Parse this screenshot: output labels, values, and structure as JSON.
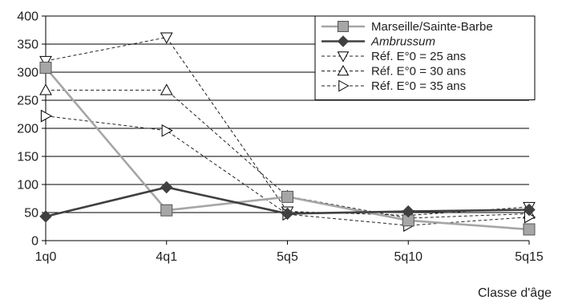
{
  "chart_data": {
    "type": "line",
    "title": "",
    "xlabel": "Classe d'âge",
    "ylabel": "",
    "categories": [
      "1q0",
      "4q1",
      "5q5",
      "5q10",
      "5q15"
    ],
    "ylim": [
      0,
      400
    ],
    "yticks": [
      0,
      50,
      100,
      150,
      200,
      250,
      300,
      350,
      400
    ],
    "grid": true,
    "legend_position": "top-right",
    "series": [
      {
        "name": "Marseille/Sainte-Barbe",
        "style": "solid",
        "color": "#a6a6a6",
        "marker": "square",
        "italic": false,
        "values": [
          308,
          54,
          78,
          36,
          20
        ]
      },
      {
        "name": "Ambrussum",
        "style": "solid",
        "color": "#404040",
        "marker": "diamond",
        "italic": true,
        "values": [
          43,
          95,
          48,
          52,
          55
        ]
      },
      {
        "name": "Réf. E°0 = 25 ans",
        "style": "dashed",
        "color": "#222222",
        "marker": "triangle-down",
        "italic": false,
        "values": [
          320,
          362,
          52,
          45,
          60
        ]
      },
      {
        "name": "Réf. E°0 = 30 ans",
        "style": "dashed",
        "color": "#222222",
        "marker": "triangle-up",
        "italic": false,
        "values": [
          268,
          268,
          79,
          40,
          48
        ]
      },
      {
        "name": "Réf. E°0 = 35 ans",
        "style": "dashed",
        "color": "#222222",
        "marker": "triangle-right",
        "italic": false,
        "values": [
          222,
          196,
          47,
          27,
          42
        ]
      }
    ]
  }
}
